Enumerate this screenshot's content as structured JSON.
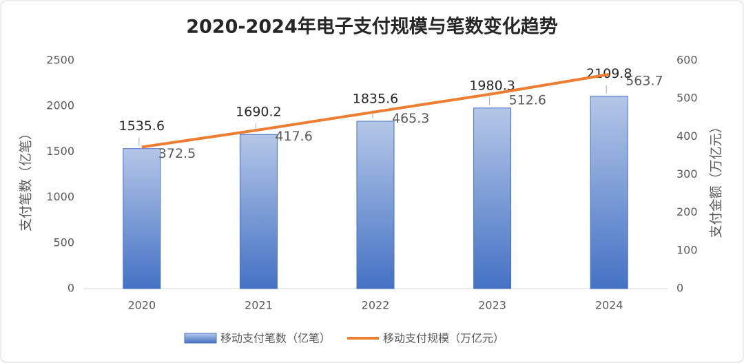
{
  "chart_data": {
    "type": "bar-line",
    "title": "2020-2024年电子支付规模与笔数变化趋势",
    "categories": [
      "2020",
      "2021",
      "2022",
      "2023",
      "2024"
    ],
    "series": [
      {
        "name": "移动支付笔数（亿笔）",
        "type": "bar",
        "color": "#4472c4",
        "values": [
          1535.6,
          1690.2,
          1835.6,
          1980.3,
          2109.8
        ]
      },
      {
        "name": "移动支付规模（万亿元）",
        "type": "line",
        "axis": "y2",
        "color": "#ed7d31",
        "values": [
          372.5,
          417.6,
          465.3,
          512.6,
          563.7
        ]
      }
    ],
    "y_label": "支付笔数（亿笔）",
    "y2_label": "支付金额（万亿元）",
    "ylim": [
      0,
      2500
    ],
    "yticks": [
      0,
      500,
      1000,
      1500,
      2000,
      2500
    ],
    "y2lim": [
      0,
      600
    ],
    "y2ticks": [
      0,
      100,
      200,
      300,
      400,
      500,
      600
    ],
    "grid": false,
    "legend": "bottom"
  }
}
